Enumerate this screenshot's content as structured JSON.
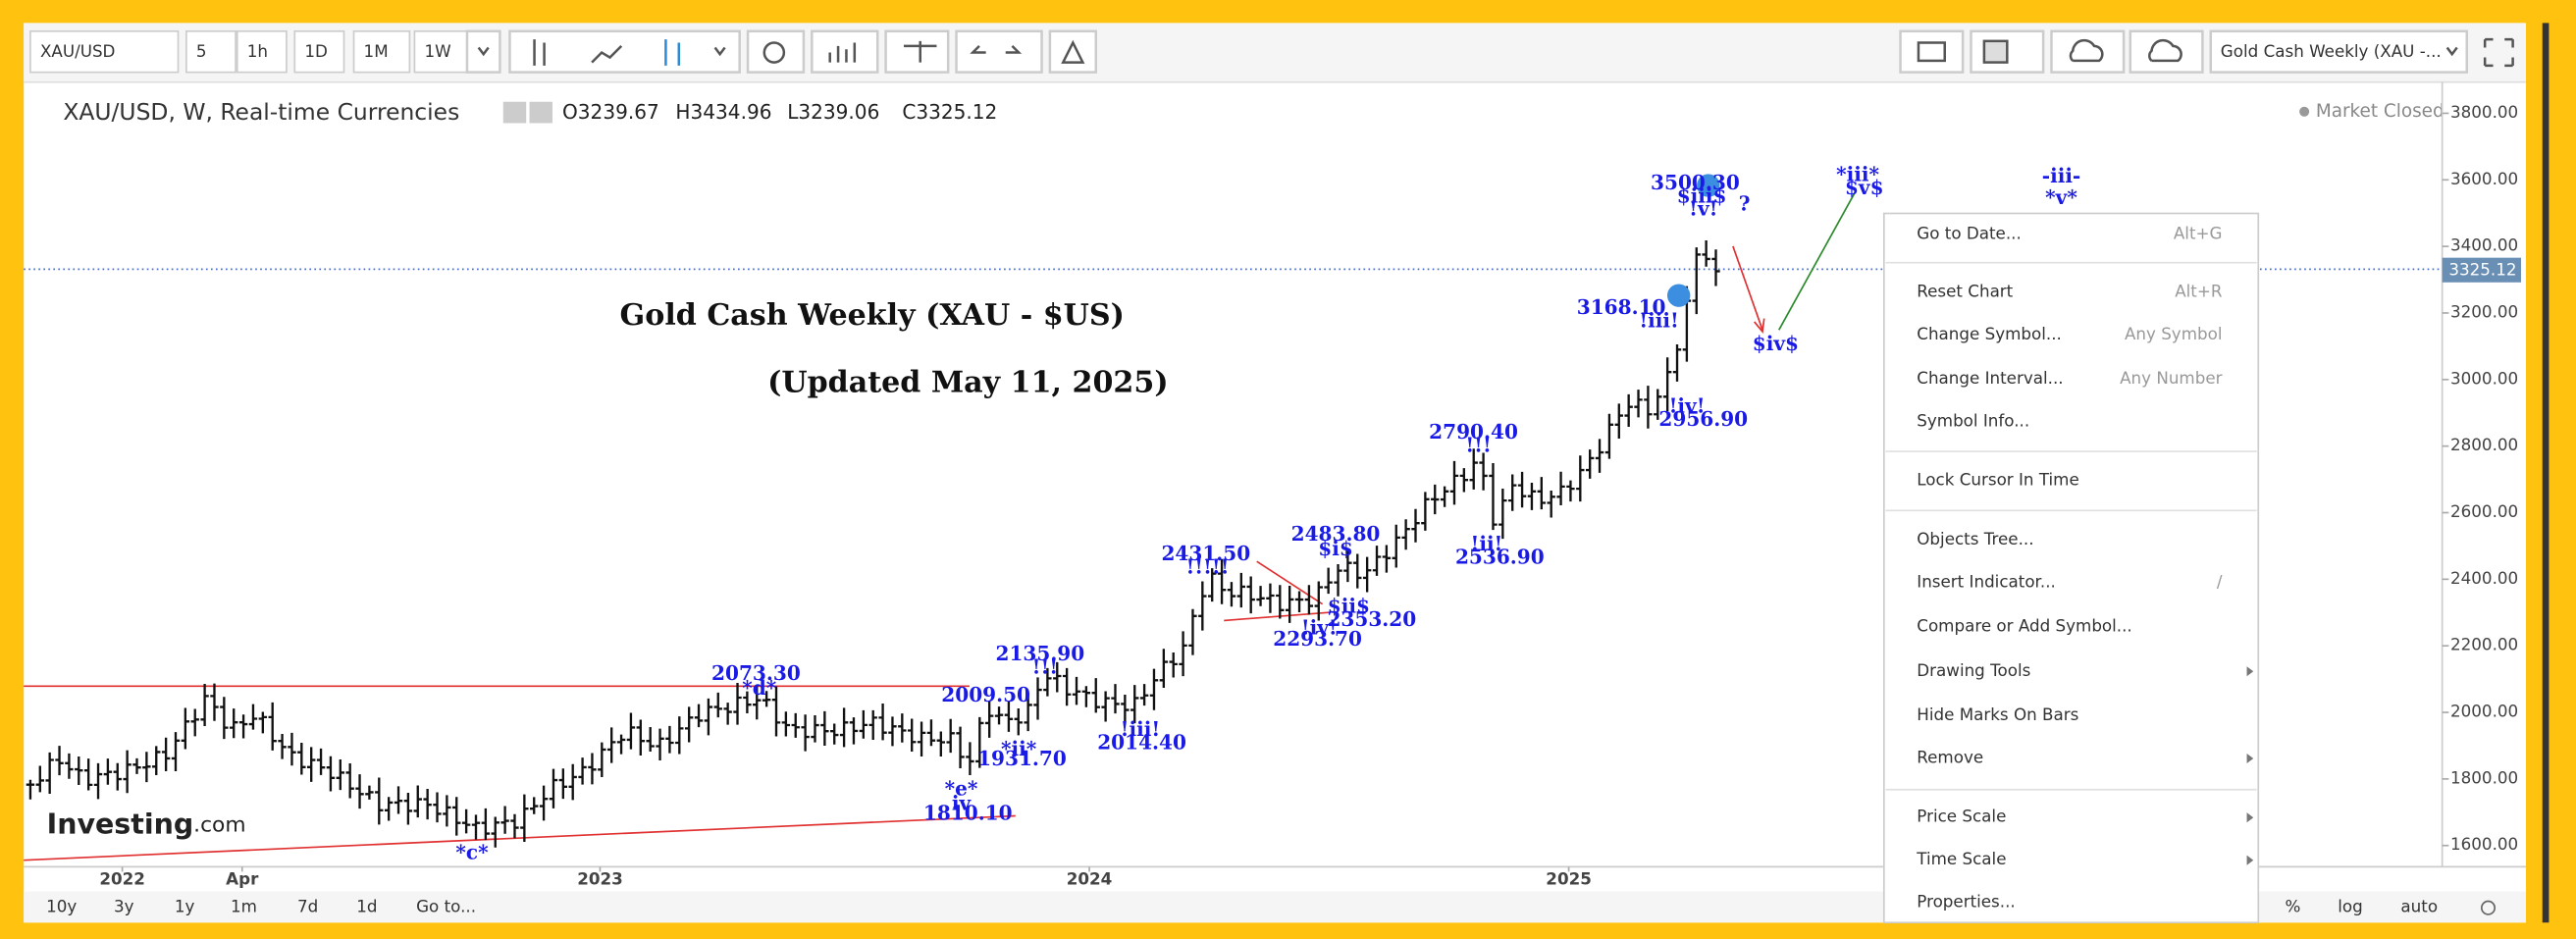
{
  "toolbar": {
    "symbol": "XAU/USD",
    "intervals": [
      "5",
      "1h",
      "1D",
      "1M",
      "1W"
    ],
    "layout_name": "Gold Cash Weekly (XAU -..."
  },
  "header": {
    "symbol_desc": "XAU/USD, W, Real-time Currencies",
    "open": "O3239.67",
    "high": "H3434.96",
    "low": "L3239.06",
    "close": "C3325.12",
    "market_status": "Market Closed"
  },
  "chart_title": "Gold Cash Weekly (XAU - $US)",
  "chart_subtitle": "(Updated May 11, 2025)",
  "price_axis": {
    "labels": [
      "3800.00",
      "3600.00",
      "3400.00",
      "3200.00",
      "3000.00",
      "2800.00",
      "2600.00",
      "2400.00",
      "2200.00",
      "2000.00",
      "1800.00",
      "1600.00"
    ],
    "current": "3325.12"
  },
  "time_axis": {
    "labels": [
      "2022",
      "Apr",
      "2023",
      "2024",
      "2025"
    ]
  },
  "wave_labels": [
    "2073.30",
    "*d*",
    "2009.50",
    "2135.90",
    "!!!",
    "*ii*",
    "1931.70",
    "*e*",
    "iv",
    "1810.10",
    "*c*",
    "!iii!",
    "2014.40",
    "2431.50",
    "!!!!!",
    "2483.80",
    "$i$",
    "$ii$",
    "2353.20",
    "!iv!",
    "2293.70",
    "2790.40",
    "!!!",
    "!ii!",
    "2536.90",
    "3168.10",
    "!iii!",
    "!iv!",
    "2956.90",
    "3500.30",
    "$iii$",
    "!v!",
    "?",
    "$iv$",
    "*iii*",
    "$v$",
    "-iii-",
    "*v*"
  ],
  "logo": {
    "name": "Investing",
    "suffix": ".com"
  },
  "context_menu": [
    {
      "label": "Go to Date...",
      "shortcut": "Alt+G"
    },
    {
      "label": "Reset Chart",
      "shortcut": "Alt+R"
    },
    {
      "label": "Change Symbol...",
      "shortcut": "Any Symbol"
    },
    {
      "label": "Change Interval...",
      "shortcut": "Any Number"
    },
    {
      "label": "Symbol Info..."
    },
    {
      "label": "Lock Cursor In Time"
    },
    {
      "label": "Objects Tree..."
    },
    {
      "label": "Insert Indicator...",
      "shortcut": "/"
    },
    {
      "label": "Compare or Add Symbol..."
    },
    {
      "label": "Drawing Tools"
    },
    {
      "label": "Hide Marks On Bars"
    },
    {
      "label": "Remove"
    },
    {
      "label": "Price Scale"
    },
    {
      "label": "Time Scale"
    },
    {
      "label": "Properties..."
    }
  ],
  "bottom_bar": {
    "ranges": [
      "10y",
      "3y",
      "1y",
      "1m",
      "7d",
      "1d"
    ],
    "goto": "Go to...",
    "scale_options": [
      "%",
      "log",
      "auto"
    ]
  }
}
